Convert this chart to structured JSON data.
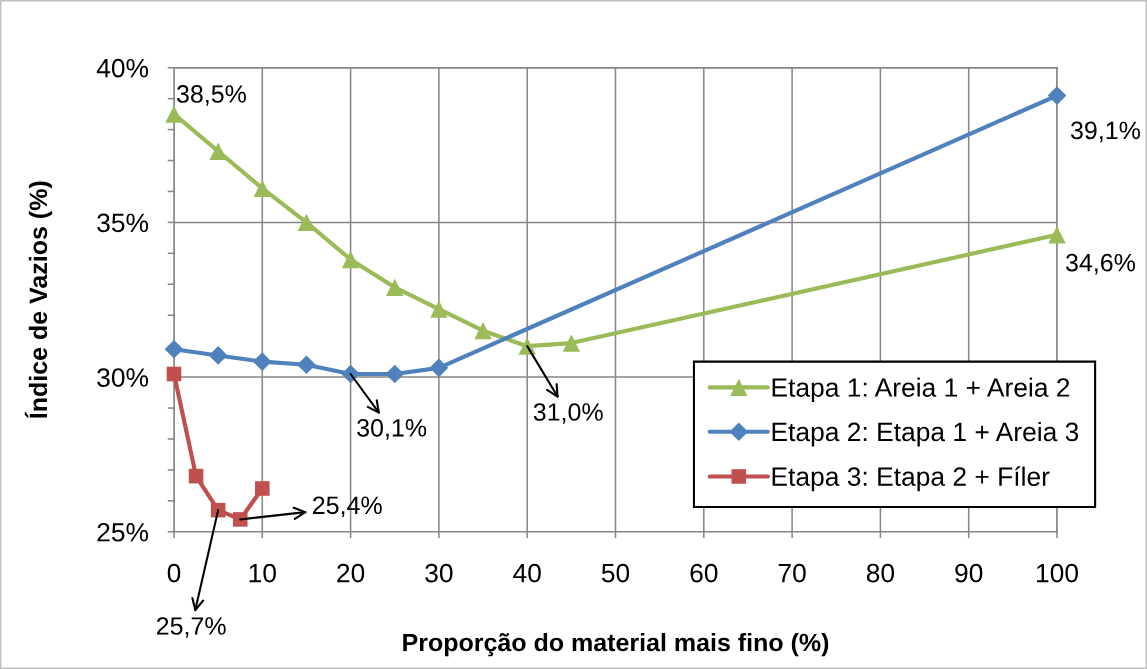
{
  "chart_data": {
    "type": "line",
    "xlabel": "Proporção do material mais fino (%)",
    "ylabel": "Índice de Vazios (%)",
    "xlim": [
      0,
      100
    ],
    "xticks": [
      0,
      10,
      20,
      30,
      40,
      50,
      60,
      70,
      80,
      90,
      100
    ],
    "ylim": [
      25,
      40
    ],
    "yticks": [
      {
        "value": 25,
        "label": "25%"
      },
      {
        "value": 26,
        "label": null
      },
      {
        "value": 27,
        "label": null
      },
      {
        "value": 28,
        "label": null
      },
      {
        "value": 29,
        "label": null
      },
      {
        "value": 30,
        "label": "30%"
      },
      {
        "value": 31,
        "label": null
      },
      {
        "value": 32,
        "label": null
      },
      {
        "value": 33,
        "label": null
      },
      {
        "value": 34,
        "label": null
      },
      {
        "value": 35,
        "label": "35%"
      },
      {
        "value": 36,
        "label": null
      },
      {
        "value": 37,
        "label": null
      },
      {
        "value": 38,
        "label": null
      },
      {
        "value": 39,
        "label": null
      },
      {
        "value": 40,
        "label": "40%"
      }
    ],
    "grid": true,
    "legend": "bottom right",
    "line_style": "solid",
    "series": [
      {
        "name": "Etapa 1: Areia 1 + Areia 2",
        "color": "#9bbb59",
        "marker": "triangle",
        "x": [
          0,
          5,
          10,
          15,
          20,
          25,
          30,
          35,
          40,
          45,
          100
        ],
        "values": [
          38.5,
          37.3,
          36.1,
          35.0,
          33.8,
          32.9,
          32.2,
          31.5,
          31.0,
          31.1,
          34.6
        ],
        "value_labels": [
          "38,5%",
          null,
          null,
          null,
          null,
          null,
          null,
          null,
          "31,0%",
          null,
          "34,6%"
        ]
      },
      {
        "name": "Etapa 2: Etapa 1 + Areia 3",
        "color": "#4f81bd",
        "marker": "diamond",
        "x": [
          0,
          5,
          10,
          15,
          20,
          25,
          30,
          100
        ],
        "values": [
          30.9,
          30.7,
          30.5,
          30.4,
          30.1,
          30.1,
          30.3,
          39.1
        ],
        "value_labels": [
          null,
          null,
          null,
          null,
          "30,1%",
          null,
          null,
          "39,1%"
        ]
      },
      {
        "name": "Etapa 3: Etapa 2 + Fíler",
        "color": "#c0504d",
        "marker": "square",
        "x": [
          0,
          2.5,
          5,
          7.5,
          10
        ],
        "values": [
          30.1,
          26.8,
          25.7,
          25.4,
          26.4
        ],
        "value_labels": [
          null,
          null,
          "25,7%",
          "25,4%",
          null
        ]
      }
    ]
  }
}
